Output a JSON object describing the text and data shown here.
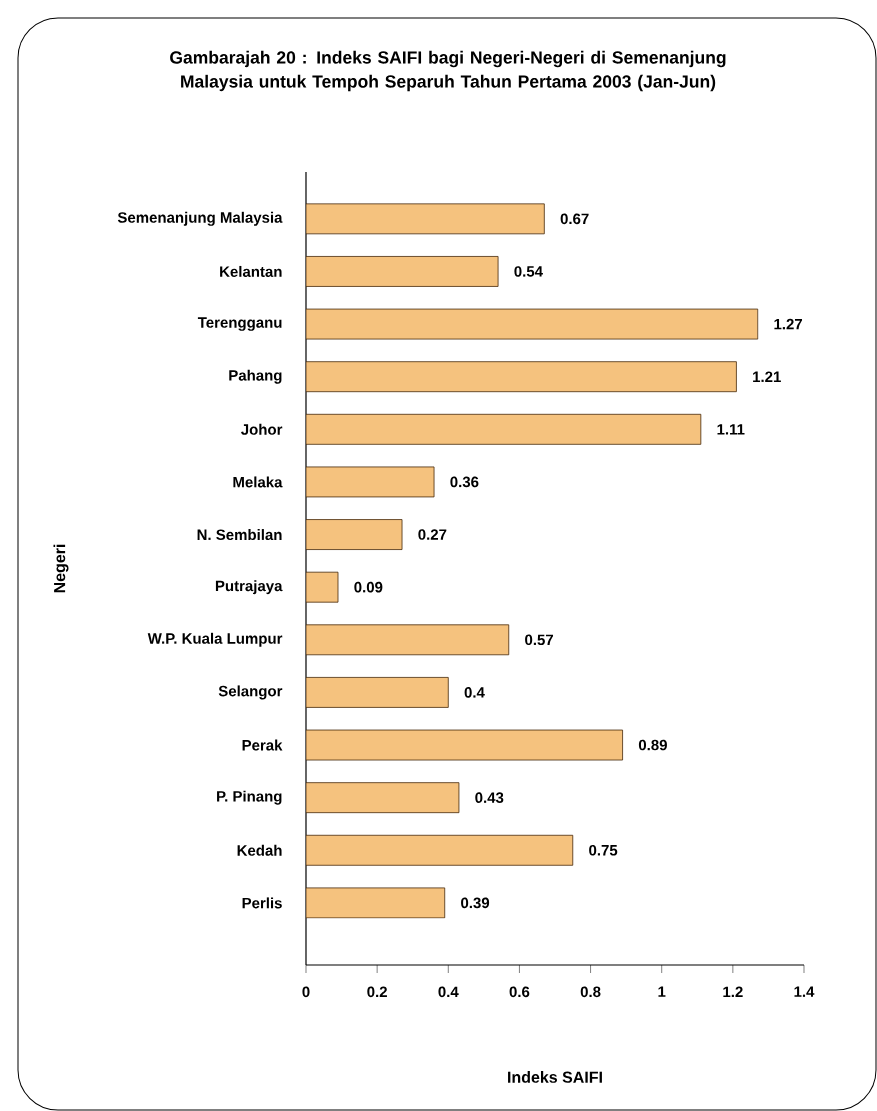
{
  "chart_data": {
    "type": "bar",
    "orientation": "horizontal",
    "title": "Gambarajah 20 : Indeks SAIFI bagi Negeri-Negeri di Semenanjung Malaysia untuk Tempoh Separuh Tahun Pertama 2003 (Jan-Jun)",
    "xlabel": "Indeks SAIFI",
    "ylabel": "Negeri",
    "categories": [
      "Semenanjung Malaysia",
      "Kelantan",
      "Terengganu",
      "Pahang",
      "Johor",
      "Melaka",
      "N. Sembilan",
      "Putrajaya",
      "W.P. Kuala Lumpur",
      "Selangor",
      "Perak",
      "P. Pinang",
      "Kedah",
      "Perlis"
    ],
    "values": [
      0.67,
      0.54,
      1.27,
      1.21,
      1.11,
      0.36,
      0.27,
      0.09,
      0.57,
      0.4,
      0.89,
      0.43,
      0.75,
      0.39
    ],
    "color": "#f5c27e",
    "data_labels": true,
    "xlim": [
      0,
      1.4
    ],
    "xticks": [
      0,
      0.2,
      0.4,
      0.6,
      0.8,
      1,
      1.2,
      1.4
    ]
  }
}
